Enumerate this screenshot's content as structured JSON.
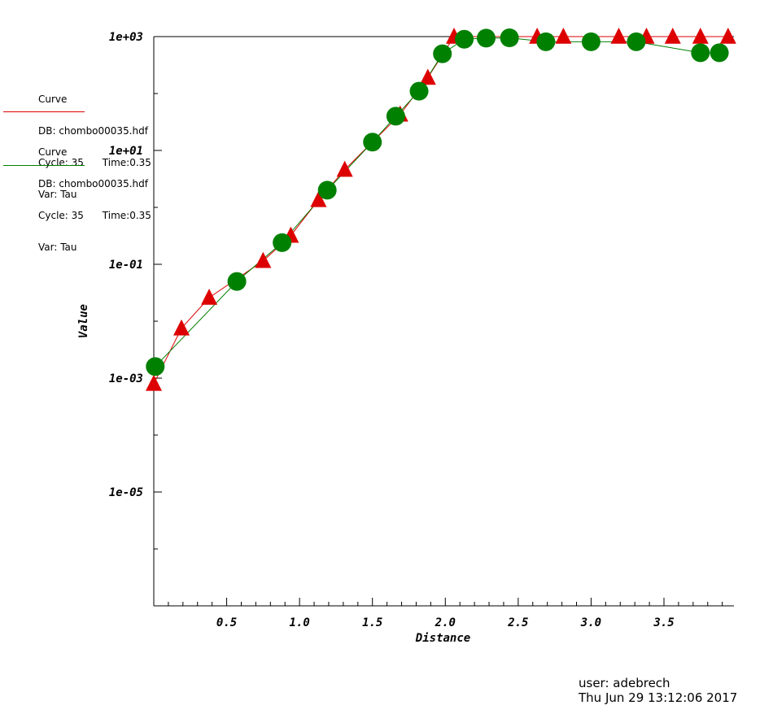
{
  "chart_data": {
    "type": "line",
    "xlabel": "Distance",
    "ylabel": "Value",
    "yscale": "log",
    "xlim": [
      0.0,
      3.98
    ],
    "ylim": [
      1e-07,
      1000
    ],
    "xticks": [
      0.5,
      1.0,
      1.5,
      2.0,
      2.5,
      3.0,
      3.5
    ],
    "xtick_labels": [
      "0.5",
      "1.0",
      "1.5",
      "2.0",
      "2.5",
      "3.0",
      "3.5"
    ],
    "yticks": [
      1e-05,
      0.001,
      0.1,
      10,
      1000
    ],
    "ytick_labels": [
      "1e-05",
      "1e-03",
      "1e-01",
      "1e+01",
      "1e+03"
    ],
    "series": [
      {
        "color": "#dd0000",
        "marker": "triangle",
        "x": [
          0.0,
          0.19,
          0.38,
          0.75,
          0.94,
          1.13,
          1.31,
          1.69,
          1.88,
          2.06,
          2.63,
          2.81,
          3.19,
          3.38,
          3.56,
          3.75,
          3.94
        ],
        "values": [
          0.0008,
          0.0075,
          0.026,
          0.115,
          0.32,
          1.35,
          4.6,
          43,
          190,
          1000,
          1000,
          1000,
          1000,
          1000,
          1000,
          1000,
          1000
        ]
      },
      {
        "color": "#008000",
        "marker": "circle",
        "x": [
          0.01,
          0.57,
          0.88,
          1.19,
          1.5,
          1.66,
          1.82,
          1.98,
          2.13,
          2.28,
          2.44,
          2.69,
          3.0,
          3.31,
          3.75,
          3.88
        ],
        "values": [
          0.0016,
          0.05,
          0.24,
          2.0,
          14,
          40,
          110,
          500,
          900,
          940,
          950,
          810,
          810,
          810,
          520,
          520
        ]
      }
    ],
    "legend": [
      {
        "lines": [
          "Curve",
          "DB: chombo00035.hdf",
          "Cycle: 35      Time:0.35",
          "Var: Tau"
        ],
        "color": "#dd0000"
      },
      {
        "lines": [
          "Curve",
          "DB: chombo00035.hdf",
          "Cycle: 35      Time:0.35",
          "Var: Tau"
        ],
        "color": "#008000"
      }
    ]
  },
  "footer": {
    "user": "user: adebrech",
    "timestamp": "Thu Jun 29 13:12:06 2017"
  }
}
